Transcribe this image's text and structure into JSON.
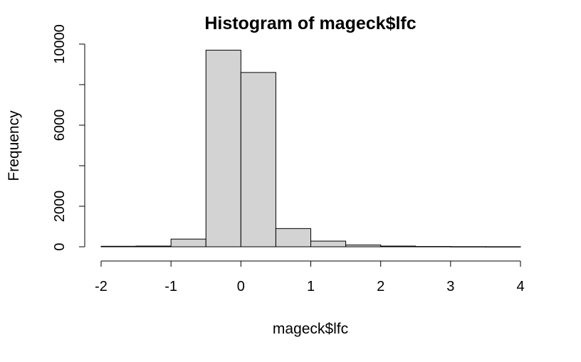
{
  "chart_data": {
    "type": "bar",
    "subtype": "histogram",
    "title": "Histogram of mageck$lfc",
    "xlabel": "mageck$lfc",
    "ylabel": "Frequency",
    "bins": [
      {
        "from": -2.0,
        "to": -1.5,
        "count": 25
      },
      {
        "from": -1.5,
        "to": -1.0,
        "count": 35
      },
      {
        "from": -1.0,
        "to": -0.5,
        "count": 380
      },
      {
        "from": -0.5,
        "to": 0.0,
        "count": 9700
      },
      {
        "from": 0.0,
        "to": 0.5,
        "count": 8600
      },
      {
        "from": 0.5,
        "to": 1.0,
        "count": 900
      },
      {
        "from": 1.0,
        "to": 1.5,
        "count": 280
      },
      {
        "from": 1.5,
        "to": 2.0,
        "count": 90
      },
      {
        "from": 2.0,
        "to": 2.5,
        "count": 35
      },
      {
        "from": 2.5,
        "to": 3.0,
        "count": 15
      },
      {
        "from": 3.0,
        "to": 3.5,
        "count": 8
      },
      {
        "from": 3.5,
        "to": 4.0,
        "count": 5
      }
    ],
    "x_ticks": [
      -2,
      -1,
      0,
      1,
      2,
      3,
      4
    ],
    "y_ticks": [
      0,
      2000,
      6000,
      10000
    ],
    "y_minor_ticks": [
      4000,
      8000
    ],
    "xlim": [
      -2,
      4
    ],
    "ylim": [
      0,
      10000
    ],
    "grid": false,
    "legend": "none",
    "colors": {
      "bar_fill": "#d3d3d3",
      "bar_stroke": "#000000",
      "axis": "#000000"
    }
  }
}
